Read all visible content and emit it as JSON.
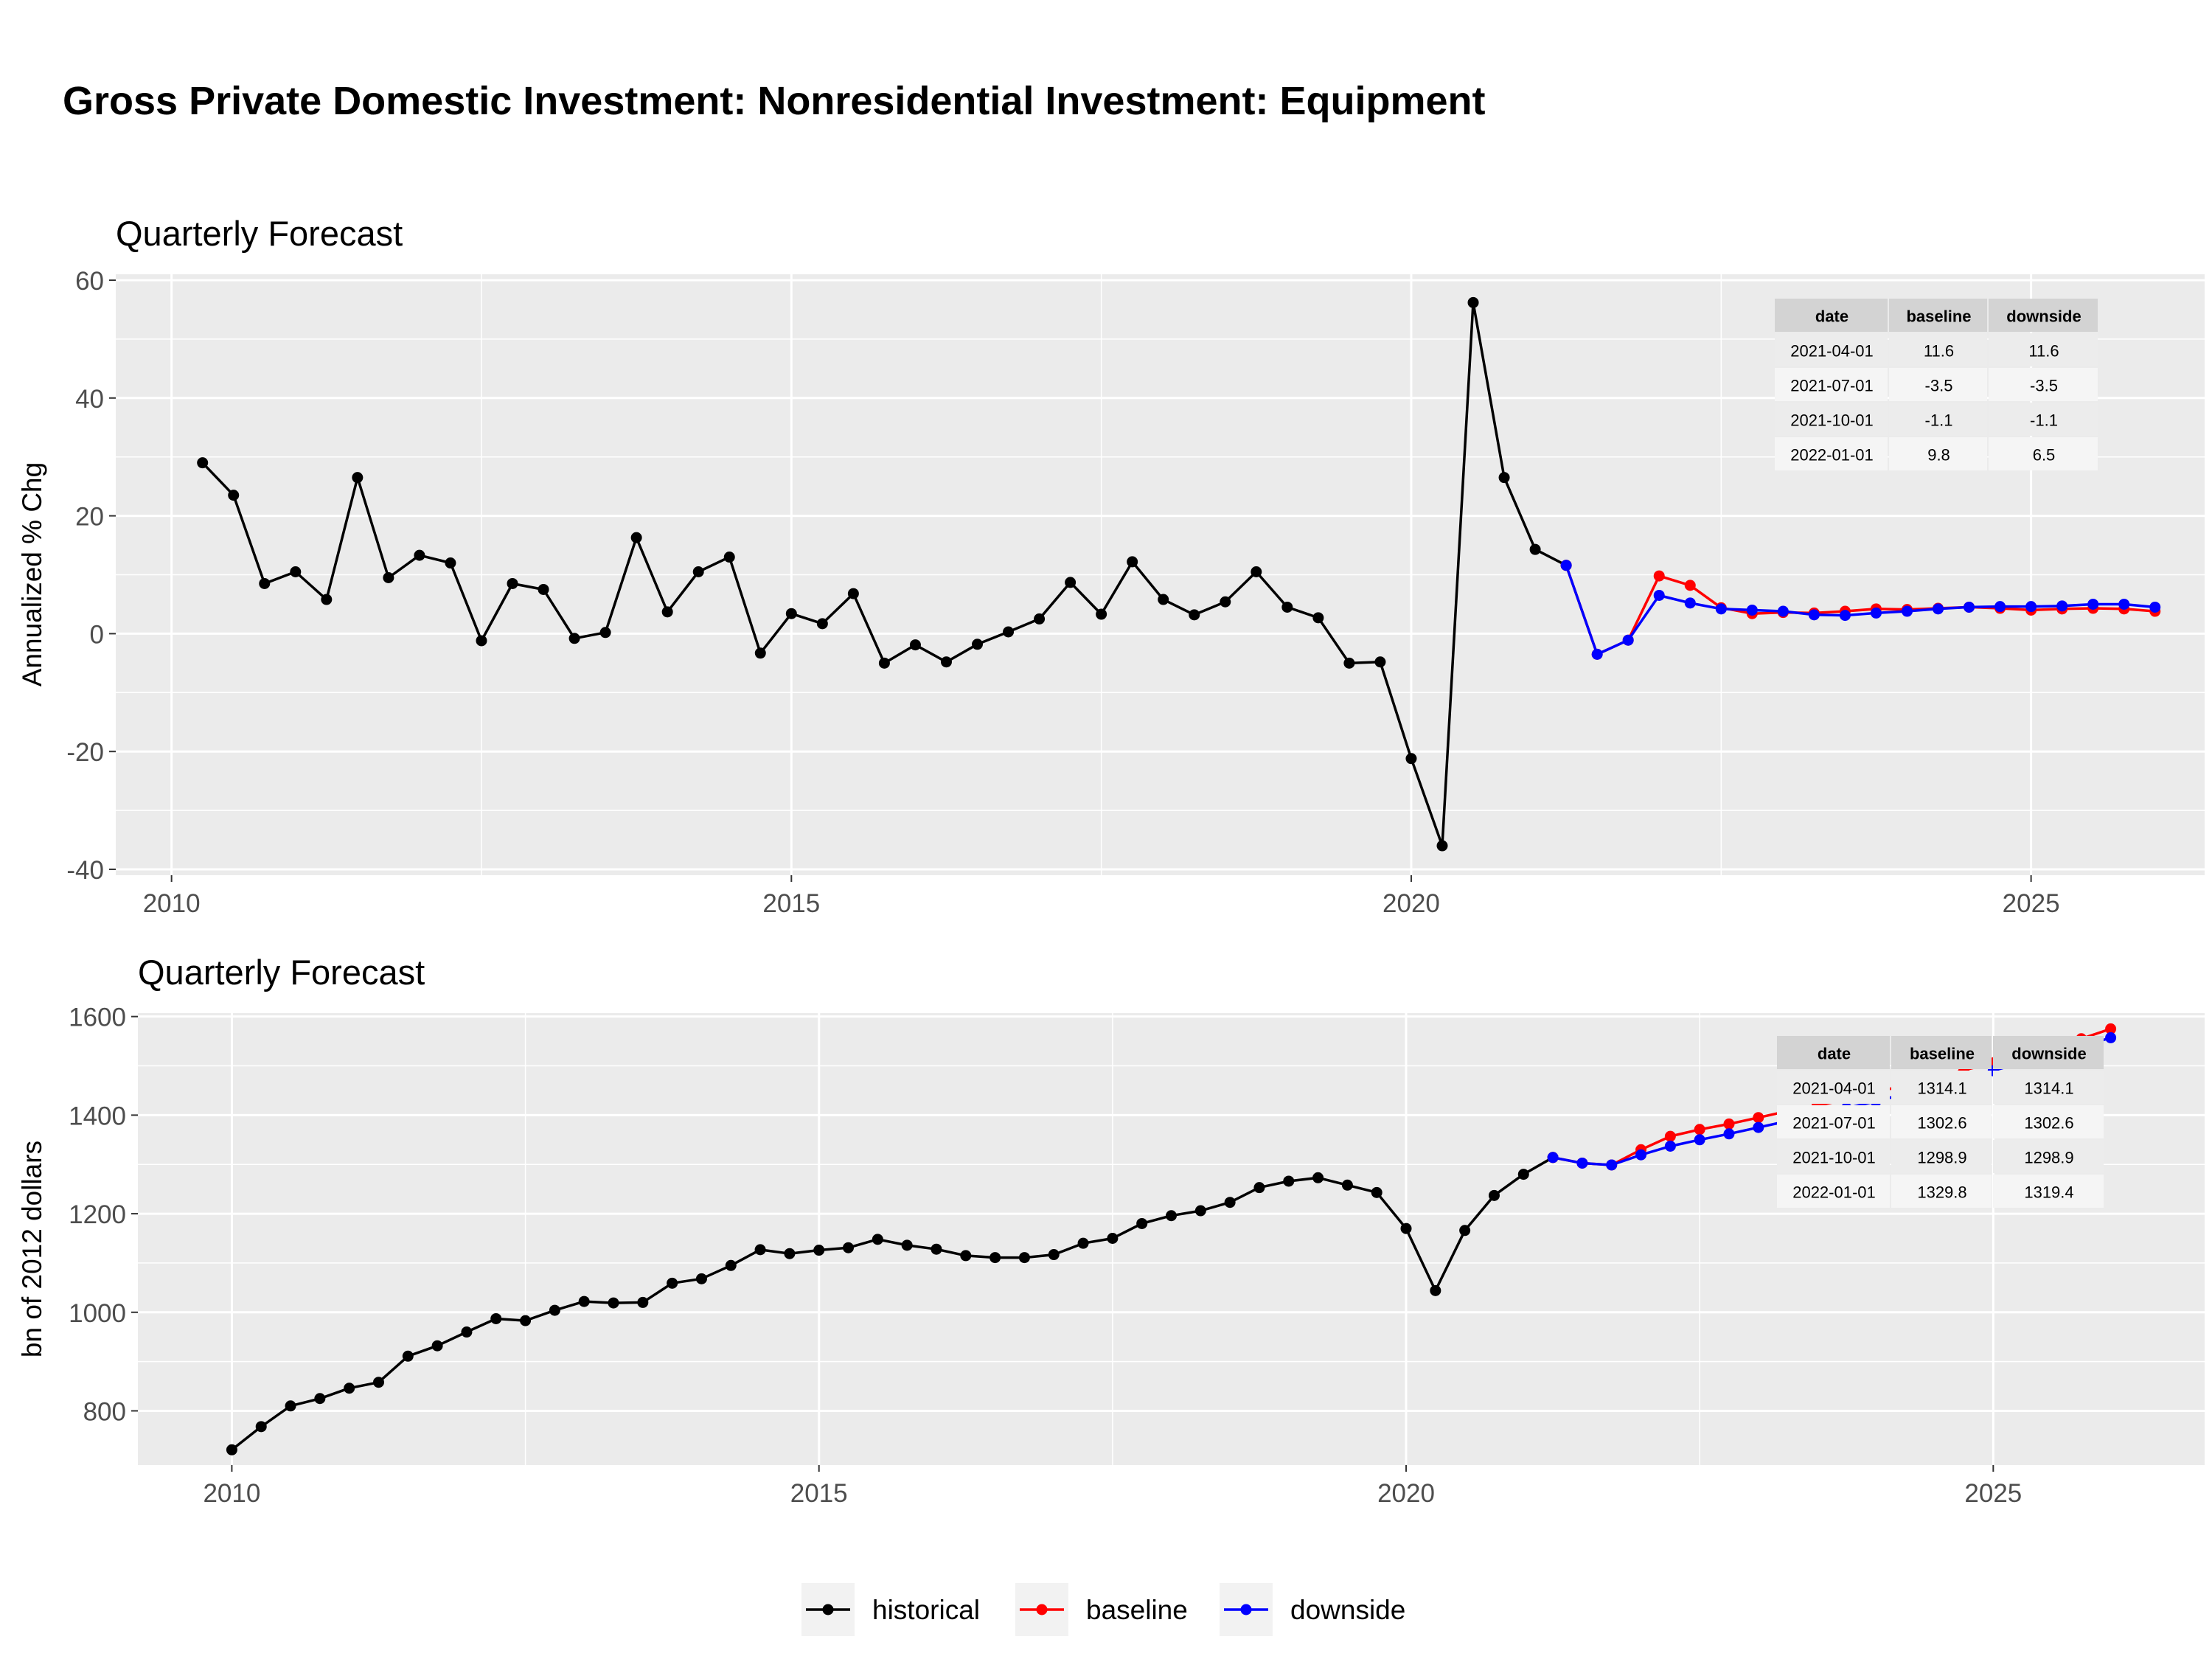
{
  "title": "Gross Private Domestic Investment: Nonresidential Investment: Equipment",
  "colors": {
    "historical": "#000000",
    "baseline": "#ff0000",
    "downside": "#0000ff",
    "panel_bg": "#ebebeb",
    "grid": "#ffffff",
    "table_header": "#d3d3d3",
    "table_row_a": "#ececec",
    "table_row_b": "#f5f5f5"
  },
  "legend": {
    "position": "bottom",
    "items": [
      {
        "key": "historical",
        "label": "historical"
      },
      {
        "key": "baseline",
        "label": "baseline"
      },
      {
        "key": "downside",
        "label": "downside"
      }
    ]
  },
  "chart_data": [
    {
      "type": "line",
      "subtitle": "Quarterly Forecast",
      "ylabel": "Annualized % Chg",
      "xlim": [
        2009.55,
        2026.4
      ],
      "ylim": [
        -41,
        61
      ],
      "x_ticks": [
        2010,
        2015,
        2020,
        2025
      ],
      "x_tick_labels": [
        "2010",
        "2015",
        "2020",
        "2025"
      ],
      "y_ticks": [
        -40,
        -20,
        0,
        20,
        40,
        60
      ],
      "y_tick_labels": [
        "-40",
        "-20",
        "0",
        "20",
        "40",
        "60"
      ],
      "grid": true,
      "series": [
        {
          "name": "historical",
          "x": [
            2010.25,
            2010.5,
            2010.75,
            2011,
            2011.25,
            2011.5,
            2011.75,
            2012,
            2012.25,
            2012.5,
            2012.75,
            2013,
            2013.25,
            2013.5,
            2013.75,
            2014,
            2014.25,
            2014.5,
            2014.75,
            2015,
            2015.25,
            2015.5,
            2015.75,
            2016,
            2016.25,
            2016.5,
            2016.75,
            2017,
            2017.25,
            2017.5,
            2017.75,
            2018,
            2018.25,
            2018.5,
            2018.75,
            2019,
            2019.25,
            2019.5,
            2019.75,
            2020,
            2020.25,
            2020.5,
            2020.75,
            2021,
            2021.25
          ],
          "y": [
            29,
            23.5,
            8.5,
            10.5,
            5.8,
            26.5,
            9.5,
            13.3,
            12,
            -1.2,
            8.5,
            7.5,
            -0.8,
            0.2,
            16.3,
            3.7,
            10.5,
            13,
            -3.3,
            3.4,
            1.7,
            6.8,
            -5,
            -1.9,
            -4.8,
            -1.8,
            0.3,
            2.5,
            8.7,
            3.3,
            12.2,
            5.8,
            3.2,
            5.4,
            10.5,
            4.5,
            2.7,
            -5,
            -4.8,
            -21.2,
            -36,
            56.2,
            26.5,
            14.3,
            11.6
          ]
        },
        {
          "name": "baseline",
          "x": [
            2021.25,
            2021.5,
            2021.75,
            2022,
            2022.25,
            2022.5,
            2022.75,
            2023,
            2023.25,
            2023.5,
            2023.75,
            2024,
            2024.25,
            2024.5,
            2024.75,
            2025,
            2025.25,
            2025.5,
            2025.75,
            2026
          ],
          "y": [
            11.6,
            -3.5,
            -1.1,
            9.8,
            8.2,
            4.4,
            3.4,
            3.6,
            3.5,
            3.8,
            4.2,
            4.1,
            4.3,
            4.5,
            4.3,
            4,
            4.2,
            4.3,
            4.2,
            3.8
          ]
        },
        {
          "name": "downside",
          "x": [
            2021.25,
            2021.5,
            2021.75,
            2022,
            2022.25,
            2022.5,
            2022.75,
            2023,
            2023.25,
            2023.5,
            2023.75,
            2024,
            2024.25,
            2024.5,
            2024.75,
            2025,
            2025.25,
            2025.5,
            2025.75,
            2026
          ],
          "y": [
            11.6,
            -3.5,
            -1.1,
            6.5,
            5.2,
            4.2,
            4,
            3.8,
            3.2,
            3.1,
            3.5,
            3.8,
            4.2,
            4.5,
            4.6,
            4.6,
            4.7,
            5,
            5,
            4.5
          ]
        }
      ],
      "table": {
        "columns": [
          "date",
          "baseline",
          "downside"
        ],
        "rows": [
          [
            "2021-04-01",
            "11.6",
            "11.6"
          ],
          [
            "2021-07-01",
            "-3.5",
            "-3.5"
          ],
          [
            "2021-10-01",
            "-1.1",
            "-1.1"
          ],
          [
            "2022-01-01",
            "9.8",
            "6.5"
          ]
        ]
      }
    },
    {
      "type": "line",
      "subtitle": "Quarterly Forecast",
      "ylabel": "bn of 2012 dollars",
      "xlim": [
        2009.2,
        2026.8
      ],
      "ylim": [
        690,
        1607
      ],
      "x_ticks": [
        2010,
        2015,
        2020,
        2025
      ],
      "x_tick_labels": [
        "2010",
        "2015",
        "2020",
        "2025"
      ],
      "y_ticks": [
        800,
        1000,
        1200,
        1400,
        1600
      ],
      "y_tick_labels": [
        "800",
        "1000",
        "1200",
        "1400",
        "1600"
      ],
      "grid": true,
      "series": [
        {
          "name": "historical",
          "x": [
            2010,
            2010.25,
            2010.5,
            2010.75,
            2011,
            2011.25,
            2011.5,
            2011.75,
            2012,
            2012.25,
            2012.5,
            2012.75,
            2013,
            2013.25,
            2013.5,
            2013.75,
            2014,
            2014.25,
            2014.5,
            2014.75,
            2015,
            2015.25,
            2015.5,
            2015.75,
            2016,
            2016.25,
            2016.5,
            2016.75,
            2017,
            2017.25,
            2017.5,
            2017.75,
            2018,
            2018.25,
            2018.5,
            2018.75,
            2019,
            2019.25,
            2019.5,
            2019.75,
            2020,
            2020.25,
            2020.5,
            2020.75,
            2021,
            2021.25
          ],
          "y": [
            721,
            768,
            810,
            825,
            846,
            858,
            911,
            932,
            960,
            987,
            983,
            1004,
            1022,
            1019,
            1020,
            1059,
            1068,
            1095,
            1127,
            1119,
            1126,
            1131,
            1148,
            1136,
            1128,
            1115,
            1111,
            1111,
            1117,
            1140,
            1150,
            1180,
            1196,
            1206,
            1223,
            1253,
            1266,
            1273,
            1258,
            1243,
            1170,
            1044,
            1166,
            1237,
            1280,
            1314.1
          ]
        },
        {
          "name": "baseline",
          "x": [
            2021.25,
            2021.5,
            2021.75,
            2022,
            2022.25,
            2022.5,
            2022.75,
            2023,
            2023.25,
            2023.5,
            2023.75,
            2024,
            2024.25,
            2024.5,
            2024.75,
            2025,
            2025.25,
            2025.5,
            2025.75,
            2026
          ],
          "y": [
            1314.1,
            1302.6,
            1298.9,
            1329.8,
            1357,
            1371,
            1382,
            1395,
            1408,
            1419,
            1432,
            1446,
            1461,
            1476,
            1491,
            1506,
            1522,
            1538,
            1555,
            1575
          ]
        },
        {
          "name": "downside",
          "x": [
            2021.25,
            2021.5,
            2021.75,
            2022,
            2022.25,
            2022.5,
            2022.75,
            2023,
            2023.25,
            2023.5,
            2023.75,
            2024,
            2024.25,
            2024.5,
            2024.75,
            2025,
            2025.25,
            2025.5,
            2025.75,
            2026
          ],
          "y": [
            1314.1,
            1302.6,
            1298.9,
            1319.4,
            1337,
            1350,
            1362,
            1375,
            1388,
            1401,
            1414,
            1428,
            1443,
            1458,
            1474,
            1490,
            1507,
            1523,
            1539,
            1557
          ]
        }
      ],
      "table": {
        "columns": [
          "date",
          "baseline",
          "downside"
        ],
        "rows": [
          [
            "2021-04-01",
            "1314.1",
            "1314.1"
          ],
          [
            "2021-07-01",
            "1302.6",
            "1302.6"
          ],
          [
            "2021-10-01",
            "1298.9",
            "1298.9"
          ],
          [
            "2022-01-01",
            "1329.8",
            "1319.4"
          ]
        ]
      }
    }
  ]
}
